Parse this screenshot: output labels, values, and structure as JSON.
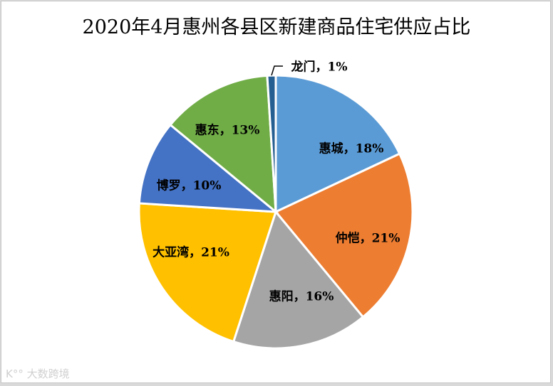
{
  "chart_data": {
    "type": "pie",
    "title": "2020年4月惠州各县区新建商品住宅供应占比",
    "categories": [
      "惠城",
      "仲恺",
      "惠阳",
      "大亚湾",
      "博罗",
      "惠东",
      "龙门"
    ],
    "values": [
      18,
      21,
      16,
      21,
      10,
      13,
      1
    ],
    "unit": "%",
    "colors": [
      "#5b9bd5",
      "#ed7d31",
      "#a5a5a5",
      "#ffc000",
      "#4472c4",
      "#70ad47",
      "#255e91"
    ],
    "labels": [
      "惠城，18%",
      "仲恺，21%",
      "惠阳，16%",
      "大亚湾，21%",
      "博罗，10%",
      "惠东，13%",
      "龙门，1%"
    ],
    "start_angle": "12 o'clock",
    "direction": "clockwise",
    "legend": "none (data labels on slices)"
  },
  "watermark": "大数跨境"
}
